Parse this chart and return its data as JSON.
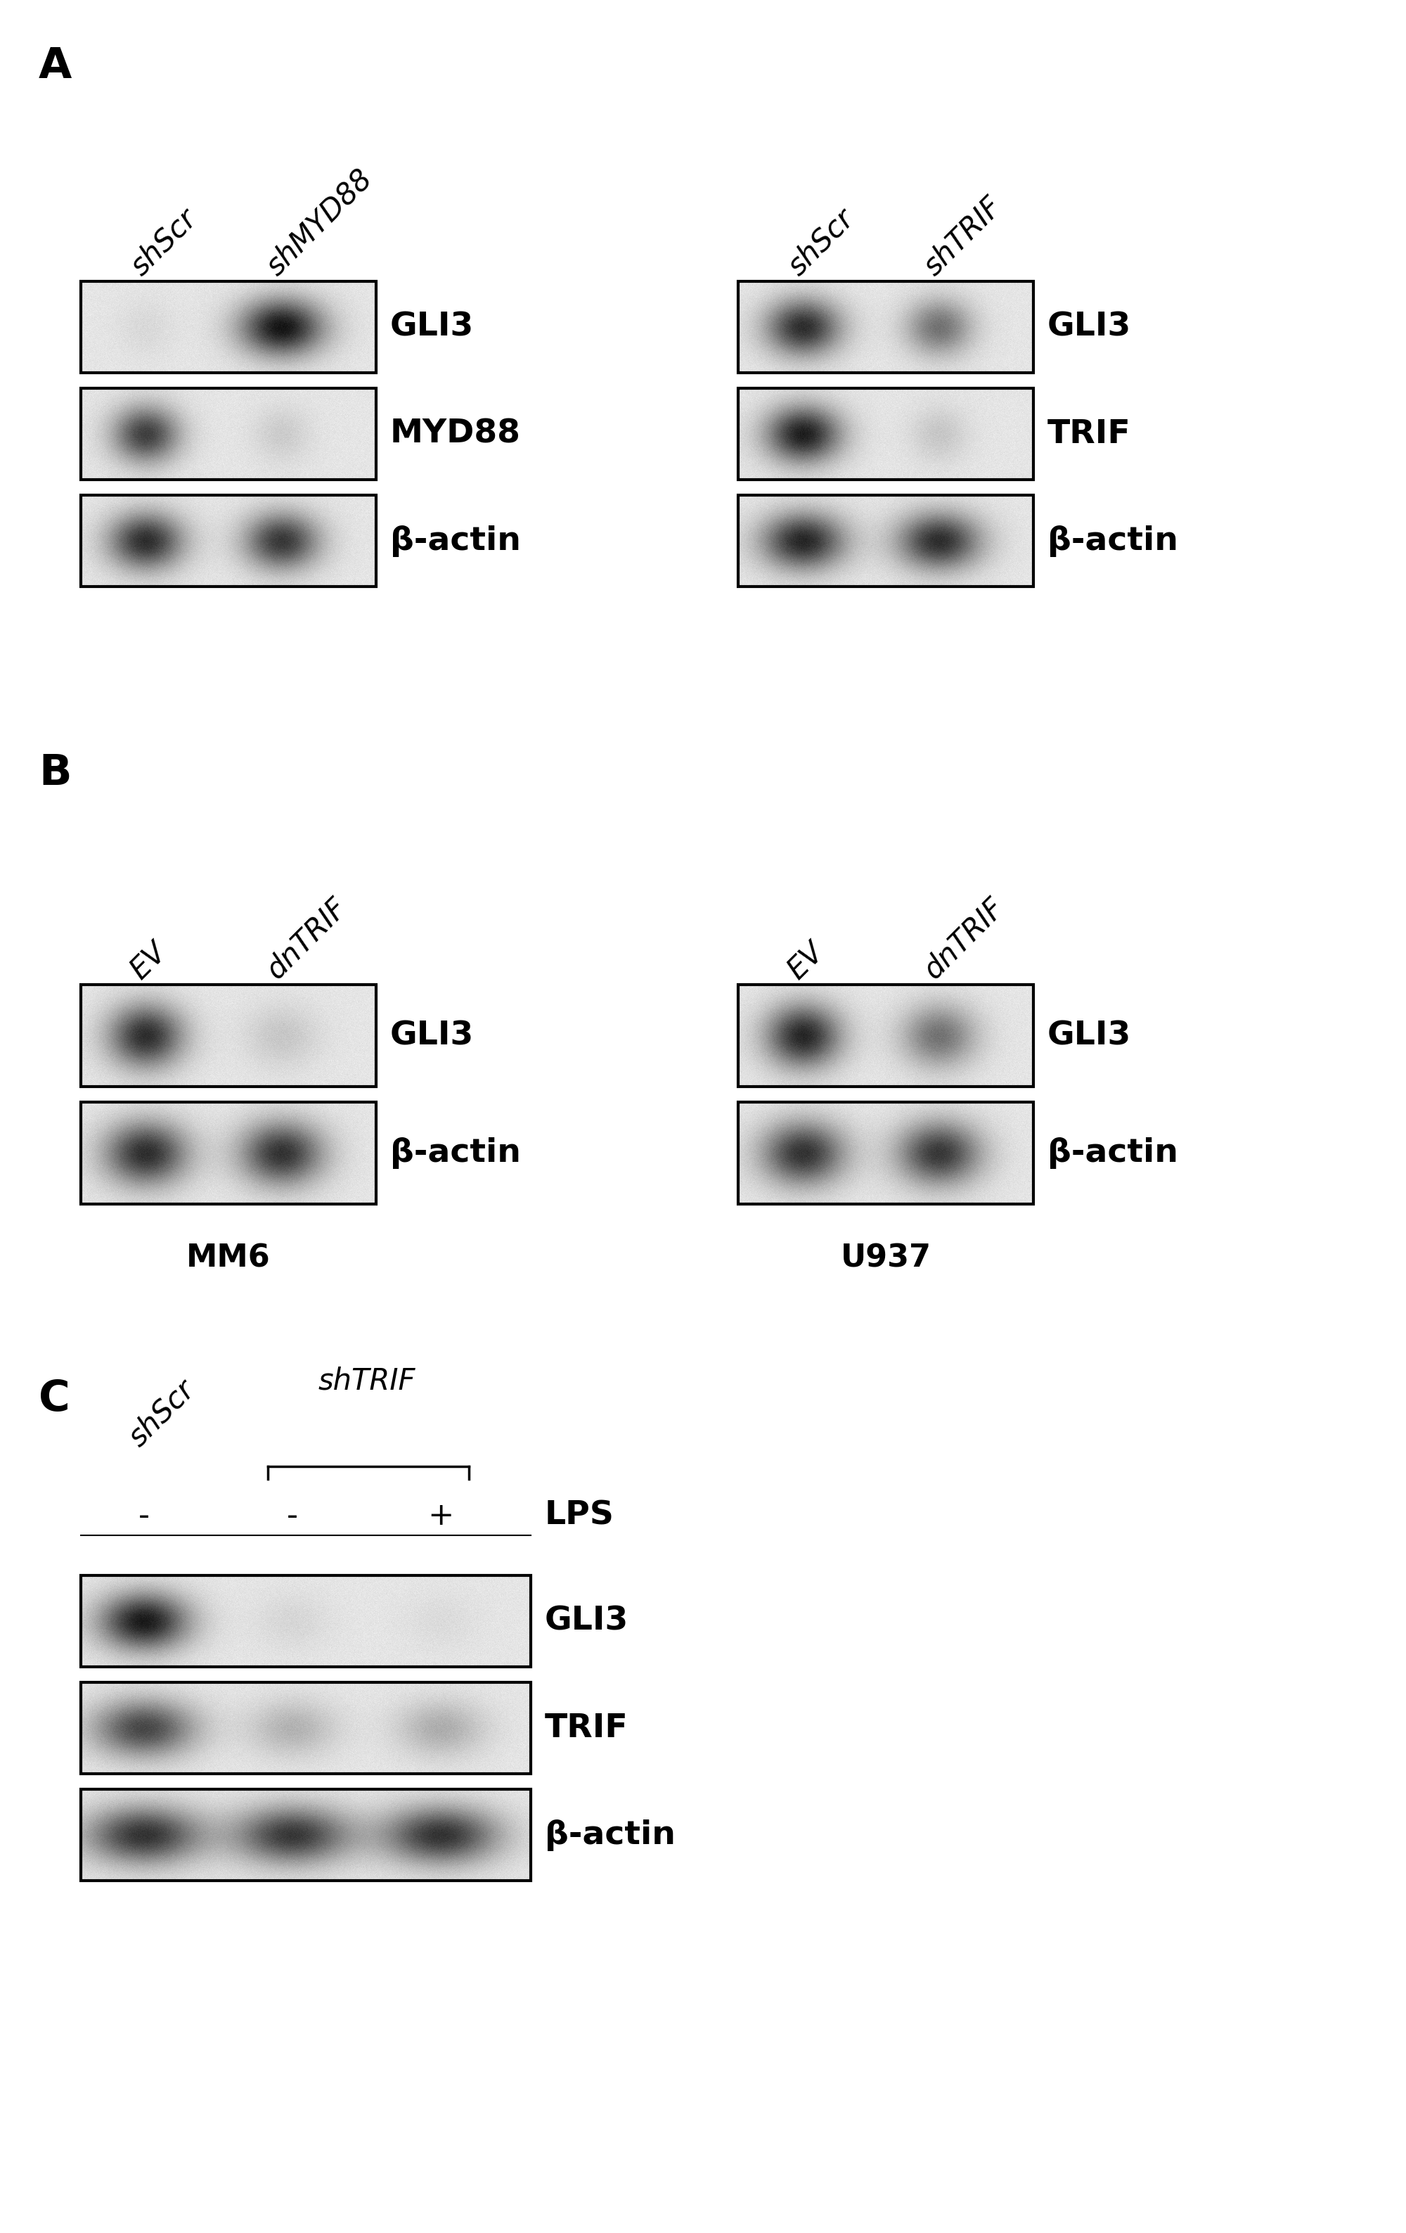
{
  "panel_A": {
    "left_labels": [
      "shScr",
      "shMYD88"
    ],
    "left_bands": [
      "GLI3",
      "MYD88",
      "β-actin"
    ],
    "right_labels": [
      "shScr",
      "shTRIF"
    ],
    "right_bands": [
      "GLI3",
      "TRIF",
      "β-actin"
    ]
  },
  "panel_B": {
    "left_labels": [
      "EV",
      "dnTRIF"
    ],
    "right_labels": [
      "EV",
      "dnTRIF"
    ],
    "left_bands": [
      "GLI3",
      "β-actin"
    ],
    "right_bands": [
      "GLI3",
      "β-actin"
    ],
    "left_cell_line": "MM6",
    "right_cell_line": "U937"
  },
  "panel_C": {
    "col1_label": "shScr",
    "group_label": "shTRIF",
    "lps_labels": [
      "-",
      "-",
      "+"
    ],
    "lps_text": "LPS",
    "bands": [
      "GLI3",
      "TRIF",
      "β-actin"
    ]
  },
  "bg_color": "#ffffff",
  "text_color": "#000000",
  "panel_label_fontsize": 44,
  "col_label_fontsize": 30,
  "band_label_fontsize": 34,
  "cell_line_fontsize": 32
}
